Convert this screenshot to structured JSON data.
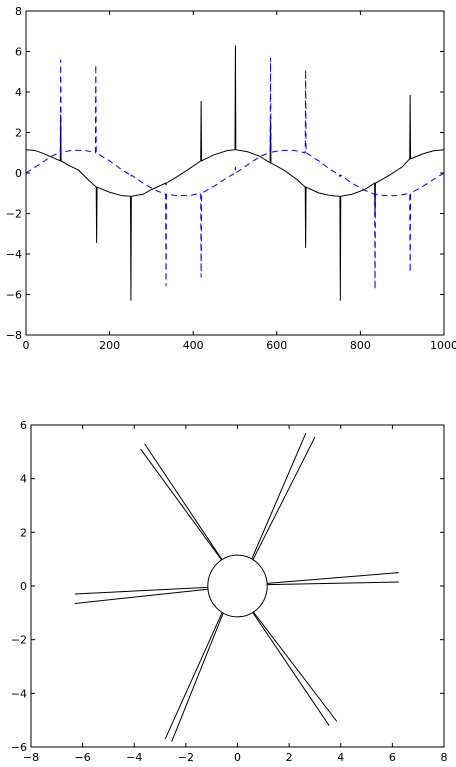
{
  "chart_data": [
    {
      "type": "line",
      "title": "",
      "xlabel": "",
      "ylabel": "",
      "xlim": [
        0,
        1000
      ],
      "ylim": [
        -8,
        8
      ],
      "x_ticks": [
        "0",
        "200",
        "400",
        "600",
        "800",
        "1000"
      ],
      "y_ticks": [
        "8",
        "6",
        "4",
        "2",
        "0",
        "−2",
        "−4",
        "−6",
        "−8"
      ],
      "x_tick_values": [
        0,
        200,
        400,
        600,
        800,
        1000
      ],
      "y_tick_values": [
        8,
        6,
        4,
        2,
        0,
        -2,
        -4,
        -6,
        -8
      ],
      "grid": false,
      "series": [
        {
          "color": "#000000",
          "style": "solid",
          "points": [
            [
              0,
              1.15
            ],
            [
              20,
              1.12
            ],
            [
              40,
              0.98
            ],
            [
              60,
              0.8
            ],
            [
              82,
              0.6
            ],
            [
              83,
              2.9
            ],
            [
              84,
              0.6
            ],
            [
              100,
              0.4
            ],
            [
              125,
              0.15
            ],
            [
              150,
              -0.35
            ],
            [
              168,
              -0.7
            ],
            [
              169,
              -3.45
            ],
            [
              170,
              -0.7
            ],
            [
              200,
              -0.95
            ],
            [
              230,
              -1.12
            ],
            [
              250,
              -1.15
            ],
            [
              251,
              -6.3
            ],
            [
              252,
              -1.15
            ],
            [
              280,
              -1.05
            ],
            [
              300,
              -0.82
            ],
            [
              334,
              -0.5
            ],
            [
              335,
              -0.6
            ],
            [
              336,
              -0.5
            ],
            [
              360,
              -0.2
            ],
            [
              390,
              0.2
            ],
            [
              418,
              0.6
            ],
            [
              419,
              3.55
            ],
            [
              420,
              0.6
            ],
            [
              450,
              0.9
            ],
            [
              480,
              1.1
            ],
            [
              500,
              1.15
            ],
            [
              501,
              6.3
            ],
            [
              502,
              1.15
            ],
            [
              530,
              1.05
            ],
            [
              560,
              0.82
            ],
            [
              584,
              0.5
            ],
            [
              585,
              2.6
            ],
            [
              586,
              0.5
            ],
            [
              620,
              0.1
            ],
            [
              650,
              -0.35
            ],
            [
              668,
              -0.7
            ],
            [
              669,
              -3.7
            ],
            [
              670,
              -0.7
            ],
            [
              700,
              -0.98
            ],
            [
              730,
              -1.12
            ],
            [
              751,
              -1.15
            ],
            [
              752,
              -6.3
            ],
            [
              753,
              -1.15
            ],
            [
              780,
              -1.05
            ],
            [
              810,
              -0.82
            ],
            [
              834,
              -0.5
            ],
            [
              835,
              -2.0
            ],
            [
              836,
              -0.5
            ],
            [
              870,
              -0.1
            ],
            [
              900,
              0.3
            ],
            [
              918,
              0.7
            ],
            [
              919,
              3.85
            ],
            [
              920,
              0.7
            ],
            [
              950,
              0.95
            ],
            [
              975,
              1.1
            ],
            [
              1000,
              1.15
            ]
          ]
        },
        {
          "color": "#0000ff",
          "style": "dashed",
          "points": [
            [
              0,
              0.0
            ],
            [
              30,
              0.4
            ],
            [
              60,
              0.82
            ],
            [
              82,
              1.02
            ],
            [
              83,
              5.6
            ],
            [
              84,
              1.02
            ],
            [
              110,
              1.12
            ],
            [
              140,
              1.12
            ],
            [
              166,
              1.0
            ],
            [
              167,
              5.35
            ],
            [
              168,
              1.0
            ],
            [
              200,
              0.6
            ],
            [
              230,
              0.15
            ],
            [
              250,
              -0.1
            ],
            [
              251,
              -0.2
            ],
            [
              252,
              -0.1
            ],
            [
              280,
              -0.5
            ],
            [
              310,
              -0.85
            ],
            [
              334,
              -1.05
            ],
            [
              335,
              -5.6
            ],
            [
              336,
              -1.05
            ],
            [
              360,
              -1.12
            ],
            [
              390,
              -1.12
            ],
            [
              418,
              -1.0
            ],
            [
              419,
              -5.15
            ],
            [
              420,
              -1.0
            ],
            [
              450,
              -0.65
            ],
            [
              480,
              -0.25
            ],
            [
              500,
              0.0
            ],
            [
              501,
              0.3
            ],
            [
              502,
              0.0
            ],
            [
              530,
              0.4
            ],
            [
              560,
              0.82
            ],
            [
              584,
              1.02
            ],
            [
              585,
              5.7
            ],
            [
              586,
              1.02
            ],
            [
              610,
              1.12
            ],
            [
              640,
              1.12
            ],
            [
              668,
              1.0
            ],
            [
              669,
              5.1
            ],
            [
              670,
              1.0
            ],
            [
              700,
              0.6
            ],
            [
              730,
              0.15
            ],
            [
              750,
              -0.1
            ],
            [
              751,
              -0.2
            ],
            [
              752,
              -0.1
            ],
            [
              780,
              -0.5
            ],
            [
              810,
              -0.85
            ],
            [
              834,
              -1.05
            ],
            [
              835,
              -5.75
            ],
            [
              836,
              -1.05
            ],
            [
              860,
              -1.12
            ],
            [
              890,
              -1.12
            ],
            [
              918,
              -1.0
            ],
            [
              919,
              -4.9
            ],
            [
              920,
              -1.0
            ],
            [
              950,
              -0.65
            ],
            [
              980,
              -0.25
            ],
            [
              1000,
              0.0
            ]
          ]
        }
      ]
    },
    {
      "type": "line",
      "title": "",
      "xlabel": "",
      "ylabel": "",
      "xlim": [
        -8,
        8
      ],
      "ylim": [
        -6,
        6
      ],
      "x_ticks": [
        "−8",
        "−6",
        "−4",
        "−2",
        "0",
        "2",
        "4",
        "6",
        "8"
      ],
      "y_ticks": [
        "6",
        "4",
        "2",
        "0",
        "−2",
        "−4",
        "−6"
      ],
      "x_tick_values": [
        -8,
        -6,
        -4,
        -2,
        0,
        2,
        4,
        6,
        8
      ],
      "y_tick_values": [
        6,
        4,
        2,
        0,
        -2,
        -4,
        -6
      ],
      "grid": false,
      "circle": {
        "center": [
          0,
          0
        ],
        "radius": 1.15
      },
      "segments": [
        [
          [
            0.55,
            1.0
          ],
          [
            2.65,
            5.7
          ]
        ],
        [
          [
            0.6,
            0.98
          ],
          [
            3.0,
            5.55
          ]
        ],
        [
          [
            -0.6,
            0.98
          ],
          [
            -3.6,
            5.3
          ]
        ],
        [
          [
            -0.6,
            0.95
          ],
          [
            -3.75,
            5.1
          ]
        ],
        [
          [
            1.15,
            0.1
          ],
          [
            6.25,
            0.5
          ]
        ],
        [
          [
            1.15,
            0.05
          ],
          [
            6.25,
            0.15
          ]
        ],
        [
          [
            -1.15,
            -0.05
          ],
          [
            -6.3,
            -0.3
          ]
        ],
        [
          [
            -1.15,
            -0.12
          ],
          [
            -6.3,
            -0.65
          ]
        ],
        [
          [
            0.6,
            -1.0
          ],
          [
            3.55,
            -5.2
          ]
        ],
        [
          [
            0.6,
            -0.95
          ],
          [
            3.85,
            -5.05
          ]
        ],
        [
          [
            -0.6,
            -1.0
          ],
          [
            -2.8,
            -5.7
          ]
        ],
        [
          [
            -0.55,
            -1.0
          ],
          [
            -2.55,
            -5.8
          ]
        ]
      ]
    }
  ]
}
